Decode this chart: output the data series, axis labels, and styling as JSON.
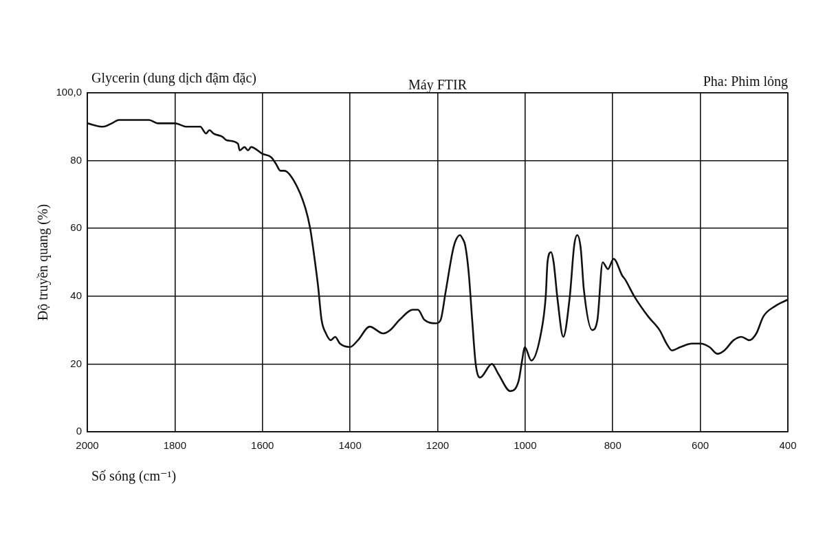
{
  "chart_data": {
    "type": "line",
    "title": "Glycerin (dung dịch đậm đặc)",
    "subtitle": "Máy FTIR",
    "annotations": [
      "Pha: Phim lỏng"
    ],
    "xlabel": "Số sóng (cm⁻¹)",
    "ylabel": "Độ truyền quang (%)",
    "x": [
      2000,
      1964,
      1944,
      1928,
      1891,
      1859,
      1839,
      1812,
      1800,
      1773,
      1742,
      1729,
      1721,
      1712,
      1691,
      1682,
      1656,
      1652,
      1641,
      1633,
      1626,
      1600,
      1580,
      1569,
      1559,
      1550,
      1528,
      1502,
      1491,
      1483,
      1473,
      1465,
      1455,
      1444,
      1434,
      1423,
      1400,
      1382,
      1355,
      1324,
      1308,
      1287,
      1256,
      1245,
      1230,
      1203,
      1193,
      1182,
      1166,
      1160,
      1149,
      1143,
      1137,
      1129,
      1121,
      1113,
      1103,
      1076,
      1061,
      1034,
      1015,
      1007,
      1001,
      986,
      964,
      953,
      949,
      941,
      935,
      926,
      913,
      898,
      888,
      881,
      873,
      866,
      847,
      835,
      823,
      811,
      798,
      778,
      772,
      751,
      719,
      693,
      677,
      665,
      645,
      619,
      600,
      579,
      561,
      545,
      524,
      506,
      488,
      472,
      456,
      430,
      400
    ],
    "series": [
      {
        "color": "#111111",
        "values": [
          91,
          90,
          91,
          92,
          92,
          92,
          91,
          91,
          91,
          90,
          90,
          88,
          89,
          88,
          87,
          86,
          85,
          83,
          84,
          83,
          84,
          82,
          81,
          79,
          77,
          77,
          74,
          66,
          60,
          53,
          43,
          33,
          29,
          27,
          28,
          26,
          25,
          27,
          31,
          29,
          30,
          33,
          36,
          36,
          33,
          32,
          33,
          41,
          53,
          56,
          58,
          57,
          55,
          47,
          33,
          20,
          16,
          20,
          17,
          12,
          15,
          21,
          25,
          21,
          29,
          40,
          50,
          53,
          50,
          39,
          28,
          40,
          55,
          58,
          54,
          42,
          30,
          33,
          50,
          48,
          51,
          46,
          45,
          40,
          34,
          30,
          26,
          24,
          25,
          26,
          26,
          25,
          23,
          24,
          27,
          28,
          27,
          29,
          34,
          37,
          39
        ]
      }
    ],
    "xlim": [
      2000,
      400
    ],
    "xticks": [
      2000,
      1800,
      1600,
      1400,
      1200,
      1000,
      800,
      600,
      400
    ],
    "ylim": [
      0,
      100
    ],
    "yticks": [
      0,
      20,
      40,
      60,
      80,
      {
        "value": 100,
        "label": "100,0"
      }
    ],
    "grid": true,
    "marker": "none",
    "line_style": "solid"
  }
}
